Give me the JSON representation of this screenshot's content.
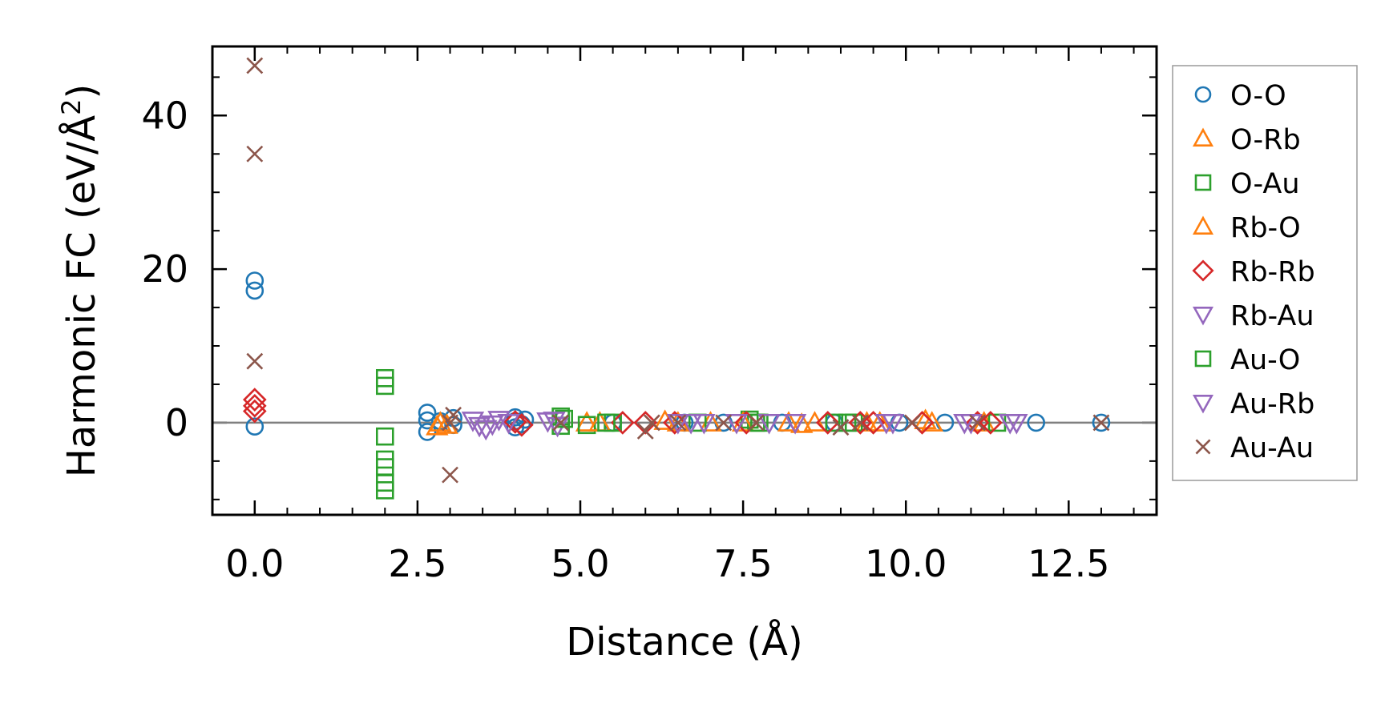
{
  "chart_data": {
    "type": "scatter",
    "xlabel": "Distance (Å)",
    "ylabel_main": "Harmonic FC (eV/Å",
    "ylabel_sup": "2",
    "ylabel_close": ")",
    "xlim": [
      -0.65,
      13.85
    ],
    "ylim": [
      -12,
      49
    ],
    "xticks": [
      0.0,
      2.5,
      5.0,
      7.5,
      10.0,
      12.5
    ],
    "xtick_labels": [
      "0.0",
      "2.5",
      "5.0",
      "7.5",
      "10.0",
      "12.5"
    ],
    "yticks": [
      0,
      20,
      40
    ],
    "ytick_labels": [
      "0",
      "20",
      "40"
    ],
    "x_minor_step": 0.5,
    "y_minor_step": 5,
    "zero_line": true,
    "grid": false,
    "legend_position": "outside right",
    "series": [
      {
        "name": "O-O",
        "marker": "circle",
        "color": "#1f77b4",
        "points": [
          [
            0,
            18.5
          ],
          [
            0,
            17.2
          ],
          [
            0,
            -0.5
          ],
          [
            2.65,
            1.3
          ],
          [
            2.65,
            0.3
          ],
          [
            2.65,
            -1.2
          ],
          [
            2.85,
            0.2
          ],
          [
            3.05,
            -0.3
          ],
          [
            3.05,
            0.6
          ],
          [
            4.0,
            0.7
          ],
          [
            4.0,
            0.2
          ],
          [
            4.0,
            -0.6
          ],
          [
            4.1,
            -0.2
          ],
          [
            4.15,
            0.4
          ],
          [
            5.5,
            0
          ],
          [
            6.6,
            0
          ],
          [
            7.2,
            0
          ],
          [
            8.1,
            0
          ],
          [
            8.9,
            0
          ],
          [
            9.9,
            0
          ],
          [
            10.6,
            0
          ],
          [
            12.0,
            0
          ],
          [
            13.0,
            0
          ]
        ]
      },
      {
        "name": "O-Rb",
        "marker": "triangle-up",
        "color": "#ff7f0e",
        "points": [
          [
            2.8,
            -0.5
          ],
          [
            2.95,
            -0.3
          ],
          [
            5.1,
            0
          ],
          [
            6.3,
            0.2
          ],
          [
            7.0,
            0
          ],
          [
            8.2,
            0
          ],
          [
            8.4,
            -0.2
          ],
          [
            9.4,
            0
          ],
          [
            10.4,
            0
          ],
          [
            11.2,
            0
          ]
        ]
      },
      {
        "name": "O-Au",
        "marker": "square",
        "color": "#2ca02c",
        "points": [
          [
            2.0,
            5.8
          ],
          [
            2.0,
            4.8
          ],
          [
            2.0,
            -1.8
          ],
          [
            2.0,
            -4.8
          ],
          [
            2.0,
            -5.8
          ],
          [
            2.0,
            -7.8
          ],
          [
            2.0,
            -8.8
          ],
          [
            4.7,
            0.8
          ],
          [
            4.7,
            -0.4
          ],
          [
            5.1,
            -0.3
          ],
          [
            5.5,
            0
          ],
          [
            6.8,
            0
          ],
          [
            7.6,
            0.4
          ],
          [
            7.7,
            0
          ],
          [
            8.9,
            0
          ],
          [
            9.2,
            0
          ],
          [
            11.4,
            0
          ]
        ]
      },
      {
        "name": "Rb-O",
        "marker": "triangle-up",
        "color": "#ff7f0e",
        "points": [
          [
            2.85,
            0
          ],
          [
            5.3,
            0
          ],
          [
            6.5,
            0
          ],
          [
            7.5,
            0
          ],
          [
            8.6,
            0
          ],
          [
            9.6,
            0
          ],
          [
            10.3,
            0.3
          ]
        ]
      },
      {
        "name": "Rb-Rb",
        "marker": "diamond",
        "color": "#d62728",
        "points": [
          [
            0,
            3.0
          ],
          [
            0,
            2.2
          ],
          [
            0,
            1.5
          ],
          [
            4.0,
            0.1
          ],
          [
            4.1,
            -0.3
          ],
          [
            5.65,
            0
          ],
          [
            6.0,
            0
          ],
          [
            6.45,
            0
          ],
          [
            7.55,
            0
          ],
          [
            8.8,
            0
          ],
          [
            9.3,
            0
          ],
          [
            9.5,
            0
          ],
          [
            10.25,
            0
          ],
          [
            11.1,
            0
          ],
          [
            11.3,
            0
          ]
        ]
      },
      {
        "name": "Rb-Au",
        "marker": "triangle-down",
        "color": "#9467bd",
        "points": [
          [
            3.35,
            0.3
          ],
          [
            3.45,
            -0.4
          ],
          [
            3.55,
            -0.8
          ],
          [
            3.65,
            -0.2
          ],
          [
            3.75,
            0.4
          ],
          [
            4.5,
            0.2
          ],
          [
            4.65,
            -0.4
          ],
          [
            6.5,
            0
          ],
          [
            6.9,
            0
          ],
          [
            7.4,
            0
          ],
          [
            8.3,
            0
          ],
          [
            9.7,
            0
          ],
          [
            11.0,
            0
          ],
          [
            11.7,
            0
          ]
        ]
      },
      {
        "name": "Au-O",
        "marker": "square",
        "color": "#2ca02c",
        "points": [
          [
            4.75,
            0.5
          ],
          [
            5.4,
            0
          ],
          [
            7.75,
            0
          ],
          [
            9.1,
            0
          ]
        ]
      },
      {
        "name": "Au-Rb",
        "marker": "triangle-down",
        "color": "#9467bd",
        "points": [
          [
            3.9,
            0
          ],
          [
            4.6,
            0.3
          ],
          [
            6.7,
            0
          ],
          [
            7.9,
            0
          ],
          [
            9.8,
            0
          ],
          [
            10.9,
            0
          ],
          [
            11.6,
            0
          ]
        ]
      },
      {
        "name": "Au-Au",
        "marker": "x",
        "color": "#8c564b",
        "points": [
          [
            0,
            46.5
          ],
          [
            0,
            35
          ],
          [
            0,
            8
          ],
          [
            3.0,
            -6.8
          ],
          [
            3.05,
            1.0
          ],
          [
            3.0,
            0
          ],
          [
            4.7,
            0
          ],
          [
            6.0,
            -1.1
          ],
          [
            6.1,
            0
          ],
          [
            6.5,
            0
          ],
          [
            7.2,
            0
          ],
          [
            7.7,
            0
          ],
          [
            9.0,
            -0.6
          ],
          [
            9.3,
            0
          ],
          [
            10.1,
            0
          ],
          [
            11.1,
            0
          ],
          [
            13.0,
            0
          ]
        ]
      }
    ]
  }
}
